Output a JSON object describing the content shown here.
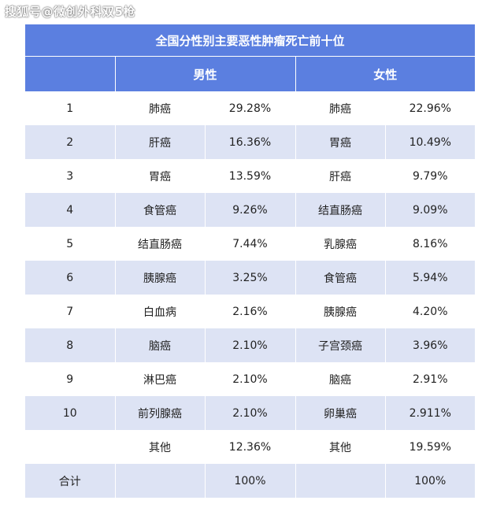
{
  "watermark": "搜狐号@微创外科双5枪",
  "table": {
    "title": "全国分性别主要恶性肿瘤死亡前十位",
    "header_male": "男性",
    "header_female": "女性",
    "rows": [
      {
        "rank": "1",
        "male_name": "肺癌",
        "male_pct": "29.28%",
        "female_name": "肺癌",
        "female_pct": "22.96%"
      },
      {
        "rank": "2",
        "male_name": "肝癌",
        "male_pct": "16.36%",
        "female_name": "胃癌",
        "female_pct": "10.49%"
      },
      {
        "rank": "3",
        "male_name": "胃癌",
        "male_pct": "13.59%",
        "female_name": "肝癌",
        "female_pct": "9.79%"
      },
      {
        "rank": "4",
        "male_name": "食管癌",
        "male_pct": "9.26%",
        "female_name": "结直肠癌",
        "female_pct": "9.09%"
      },
      {
        "rank": "5",
        "male_name": "结直肠癌",
        "male_pct": "7.44%",
        "female_name": "乳腺癌",
        "female_pct": "8.16%"
      },
      {
        "rank": "6",
        "male_name": "胰腺癌",
        "male_pct": "3.25%",
        "female_name": "食管癌",
        "female_pct": "5.94%"
      },
      {
        "rank": "7",
        "male_name": "白血病",
        "male_pct": "2.16%",
        "female_name": "胰腺癌",
        "female_pct": "4.20%"
      },
      {
        "rank": "8",
        "male_name": "脑癌",
        "male_pct": "2.10%",
        "female_name": "子宫颈癌",
        "female_pct": "3.96%"
      },
      {
        "rank": "9",
        "male_name": "淋巴癌",
        "male_pct": "2.10%",
        "female_name": "脑癌",
        "female_pct": "2.91%"
      },
      {
        "rank": "10",
        "male_name": "前列腺癌",
        "male_pct": "2.10%",
        "female_name": "卵巢癌",
        "female_pct": "2.911%"
      },
      {
        "rank": "",
        "male_name": "其他",
        "male_pct": "12.36%",
        "female_name": "其他",
        "female_pct": "19.59%"
      }
    ],
    "total": {
      "label": "合计",
      "male_pct": "100%",
      "female_pct": "100%"
    }
  }
}
